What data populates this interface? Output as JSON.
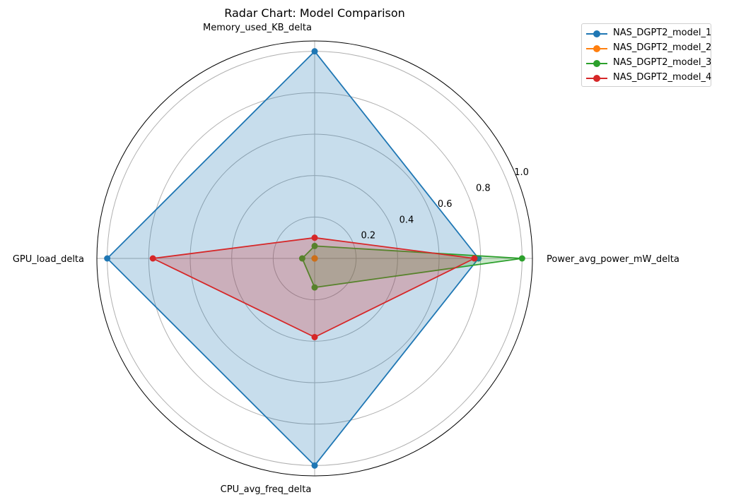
{
  "chart_data": {
    "type": "radar",
    "title": "Radar Chart: Model Comparison",
    "axes": [
      "Power_avg_power_mW_delta",
      "Memory_used_KB_delta",
      "GPU_load_delta",
      "CPU_avg_freq_delta"
    ],
    "r_ticks": [
      "0.2",
      "0.4",
      "0.6",
      "0.8",
      "1.0"
    ],
    "rlim": [
      0,
      1.05
    ],
    "grid": true,
    "legend_position": "top-right outside",
    "series": [
      {
        "name": "NAS_DGPT2_model_1",
        "color": "#1f77b4",
        "values": [
          0.79,
          1.0,
          1.0,
          1.0
        ],
        "filled": true
      },
      {
        "name": "NAS_DGPT2_model_2",
        "color": "#ff7f0e",
        "values": [
          0.0,
          0.0,
          0.0,
          0.0
        ],
        "filled": true
      },
      {
        "name": "NAS_DGPT2_model_3",
        "color": "#2ca02c",
        "values": [
          1.0,
          0.06,
          0.06,
          0.14
        ],
        "filled": true
      },
      {
        "name": "NAS_DGPT2_model_4",
        "color": "#d62728",
        "values": [
          0.77,
          0.1,
          0.78,
          0.38
        ],
        "filled": true
      }
    ]
  }
}
